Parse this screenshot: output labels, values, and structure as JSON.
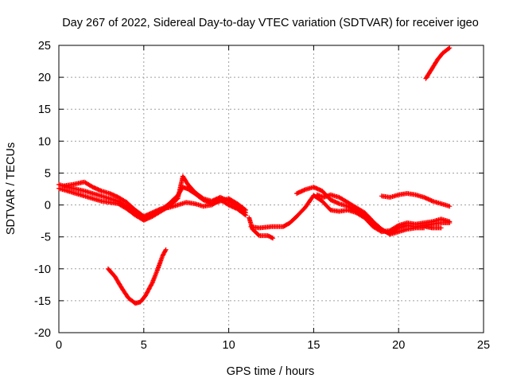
{
  "chart_data": {
    "type": "scatter",
    "title": "Day 267 of 2022, Sidereal Day-to-day VTEC variation (SDTVAR) for receiver igeo",
    "xlabel": "GPS time / hours",
    "ylabel": "SDTVAR / TECUs",
    "xlim": [
      0,
      25
    ],
    "ylim": [
      -20,
      25
    ],
    "xticks": [
      0,
      5,
      10,
      15,
      20,
      25
    ],
    "yticks": [
      -20,
      -15,
      -10,
      -5,
      0,
      5,
      10,
      15,
      20,
      25
    ],
    "grid": true,
    "marker": "+",
    "color": "#ff0000",
    "series": [
      {
        "name": "trace-1",
        "points": [
          [
            0,
            3.2
          ],
          [
            0.5,
            2.8
          ],
          [
            1.0,
            2.5
          ],
          [
            1.5,
            2.2
          ],
          [
            2.0,
            1.8
          ],
          [
            2.5,
            1.4
          ],
          [
            3.0,
            1.0
          ],
          [
            3.5,
            0.6
          ],
          [
            4.0,
            -0.2
          ],
          [
            4.5,
            -1.2
          ],
          [
            5.0,
            -2.0
          ],
          [
            5.5,
            -1.5
          ],
          [
            6.0,
            -0.8
          ],
          [
            6.5,
            0.2
          ],
          [
            7.0,
            1.5
          ],
          [
            7.3,
            2.8
          ],
          [
            7.6,
            2.5
          ],
          [
            8.0,
            1.8
          ],
          [
            8.5,
            0.8
          ],
          [
            9.0,
            0.2
          ],
          [
            9.5,
            0.6
          ],
          [
            10.0,
            1.0
          ],
          [
            10.5,
            0.2
          ],
          [
            11.0,
            -0.8
          ]
        ]
      },
      {
        "name": "trace-2",
        "points": [
          [
            0,
            2.6
          ],
          [
            0.5,
            2.2
          ],
          [
            1.0,
            1.8
          ],
          [
            1.5,
            1.4
          ],
          [
            2.0,
            1.0
          ],
          [
            2.5,
            0.6
          ],
          [
            3.0,
            0.4
          ],
          [
            3.5,
            0.2
          ],
          [
            4.0,
            -0.6
          ],
          [
            4.5,
            -1.6
          ],
          [
            5.0,
            -2.4
          ],
          [
            5.5,
            -1.8
          ],
          [
            6.0,
            -1.0
          ],
          [
            6.5,
            -0.2
          ],
          [
            7.0,
            1.0
          ],
          [
            7.3,
            4.5
          ],
          [
            7.6,
            3.2
          ],
          [
            8.0,
            2.0
          ],
          [
            8.5,
            1.0
          ],
          [
            9.0,
            0.6
          ],
          [
            9.5,
            1.2
          ],
          [
            10.0,
            0.6
          ],
          [
            10.5,
            -0.2
          ],
          [
            11.0,
            -1.2
          ]
        ]
      },
      {
        "name": "trace-3",
        "points": [
          [
            0.3,
            3.0
          ],
          [
            0.8,
            3.2
          ],
          [
            1.5,
            3.6
          ],
          [
            2.0,
            2.8
          ],
          [
            2.5,
            2.2
          ],
          [
            3.0,
            1.8
          ],
          [
            3.5,
            1.2
          ],
          [
            4.0,
            0.4
          ],
          [
            4.5,
            -0.8
          ],
          [
            5.0,
            -1.8
          ],
          [
            5.5,
            -1.2
          ],
          [
            6.0,
            -0.6
          ],
          [
            6.5,
            -0.4
          ],
          [
            7.0,
            0.0
          ],
          [
            7.5,
            0.4
          ],
          [
            8.0,
            0.2
          ],
          [
            8.5,
            -0.2
          ],
          [
            9.0,
            0.0
          ],
          [
            9.5,
            0.8
          ],
          [
            10.0,
            0.0
          ],
          [
            10.5,
            -0.6
          ],
          [
            11.0,
            -1.6
          ]
        ]
      },
      {
        "name": "trace-4",
        "points": [
          [
            11.2,
            -2.0
          ],
          [
            11.4,
            -3.8
          ],
          [
            11.8,
            -4.8
          ],
          [
            12.3,
            -4.8
          ],
          [
            12.6,
            -5.2
          ]
        ]
      },
      {
        "name": "trace-5",
        "points": [
          [
            11.3,
            -3.4
          ],
          [
            11.8,
            -3.6
          ],
          [
            12.5,
            -3.4
          ],
          [
            13.2,
            -3.4
          ],
          [
            13.6,
            -2.8
          ],
          [
            14.0,
            -1.8
          ],
          [
            14.5,
            -0.4
          ],
          [
            15.0,
            1.5
          ],
          [
            15.5,
            0.6
          ],
          [
            16.0,
            -0.8
          ],
          [
            16.5,
            -1.0
          ],
          [
            17.0,
            -0.8
          ],
          [
            17.5,
            -1.2
          ],
          [
            18.0,
            -2.0
          ],
          [
            18.5,
            -3.4
          ],
          [
            19.0,
            -4.2
          ],
          [
            19.5,
            -4.0
          ],
          [
            20.0,
            -3.2
          ],
          [
            20.5,
            -2.8
          ],
          [
            21.0,
            -3.0
          ],
          [
            21.5,
            -2.8
          ],
          [
            22.0,
            -2.6
          ],
          [
            22.5,
            -2.2
          ],
          [
            23.0,
            -2.6
          ]
        ]
      },
      {
        "name": "trace-6",
        "points": [
          [
            14.0,
            1.8
          ],
          [
            14.5,
            2.4
          ],
          [
            15.0,
            2.8
          ],
          [
            15.5,
            2.2
          ],
          [
            16.0,
            0.8
          ],
          [
            16.5,
            0.2
          ],
          [
            17.0,
            -0.2
          ],
          [
            17.5,
            -0.8
          ],
          [
            18.0,
            -1.8
          ],
          [
            18.5,
            -3.0
          ],
          [
            19.0,
            -4.0
          ],
          [
            19.5,
            -4.4
          ],
          [
            20.0,
            -3.6
          ],
          [
            20.5,
            -3.2
          ],
          [
            21.0,
            -3.4
          ],
          [
            21.5,
            -3.2
          ],
          [
            22.0,
            -3.0
          ],
          [
            22.5,
            -2.8
          ],
          [
            23.0,
            -2.8
          ]
        ]
      },
      {
        "name": "trace-7",
        "points": [
          [
            15.2,
            1.6
          ],
          [
            15.6,
            1.2
          ],
          [
            16.0,
            1.6
          ],
          [
            16.5,
            1.2
          ],
          [
            17.0,
            0.4
          ],
          [
            17.5,
            -0.4
          ],
          [
            18.0,
            -1.2
          ],
          [
            18.5,
            -2.6
          ],
          [
            19.0,
            -3.8
          ],
          [
            19.5,
            -4.6
          ],
          [
            20.0,
            -4.2
          ],
          [
            20.5,
            -3.8
          ],
          [
            21.0,
            -3.6
          ],
          [
            21.5,
            -3.6
          ]
        ]
      },
      {
        "name": "trace-8",
        "points": [
          [
            21.6,
            -3.4
          ],
          [
            22.0,
            -3.6
          ],
          [
            22.5,
            -3.6
          ]
        ]
      },
      {
        "name": "trace-9",
        "points": [
          [
            19.0,
            1.4
          ],
          [
            19.5,
            1.2
          ],
          [
            20.0,
            1.6
          ],
          [
            20.5,
            1.8
          ],
          [
            21.0,
            1.6
          ],
          [
            21.5,
            1.2
          ],
          [
            22.0,
            0.6
          ],
          [
            22.5,
            0.2
          ],
          [
            23.0,
            -0.2
          ]
        ]
      },
      {
        "name": "trace-10",
        "points": [
          [
            21.6,
            19.8
          ],
          [
            22.0,
            21.5
          ],
          [
            22.3,
            22.8
          ],
          [
            22.6,
            23.8
          ],
          [
            23.0,
            24.6
          ]
        ]
      },
      {
        "name": "trace-11",
        "points": [
          [
            2.9,
            -10.0
          ],
          [
            3.3,
            -11.2
          ],
          [
            3.7,
            -13.0
          ],
          [
            4.1,
            -14.6
          ],
          [
            4.5,
            -15.4
          ],
          [
            4.8,
            -15.2
          ],
          [
            5.1,
            -14.2
          ],
          [
            5.5,
            -12.2
          ],
          [
            5.8,
            -10.2
          ],
          [
            6.1,
            -8.0
          ],
          [
            6.3,
            -7.0
          ]
        ]
      }
    ]
  }
}
